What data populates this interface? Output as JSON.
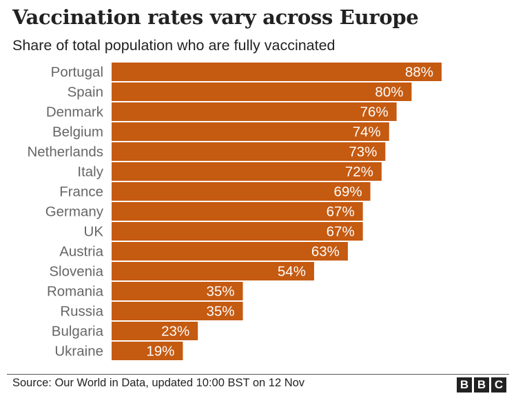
{
  "title": "Vaccination rates vary across Europe",
  "subtitle": "Share of total population who are fully vaccinated",
  "source": "Source: Our World in Data, updated 10:00 BST on 12 Nov",
  "logo": "BBC",
  "colors": {
    "bar": "#c55a11",
    "label": "#666666",
    "value_label": "#ffffff"
  },
  "chart_data": {
    "type": "bar",
    "orientation": "horizontal",
    "title": "Vaccination rates vary across Europe",
    "subtitle": "Share of total population who are fully vaccinated",
    "categories": [
      "Portugal",
      "Spain",
      "Denmark",
      "Belgium",
      "Netherlands",
      "Italy",
      "France",
      "Germany",
      "UK",
      "Austria",
      "Slovenia",
      "Romania",
      "Russia",
      "Bulgaria",
      "Ukraine"
    ],
    "values": [
      88,
      80,
      76,
      74,
      73,
      72,
      69,
      67,
      67,
      63,
      54,
      35,
      35,
      23,
      19
    ],
    "value_labels": [
      "88%",
      "80%",
      "76%",
      "74%",
      "73%",
      "72%",
      "69%",
      "67%",
      "67%",
      "63%",
      "54%",
      "35%",
      "35%",
      "23%",
      "19%"
    ],
    "xlim": [
      0,
      100
    ],
    "grid": false,
    "legend": "none"
  }
}
